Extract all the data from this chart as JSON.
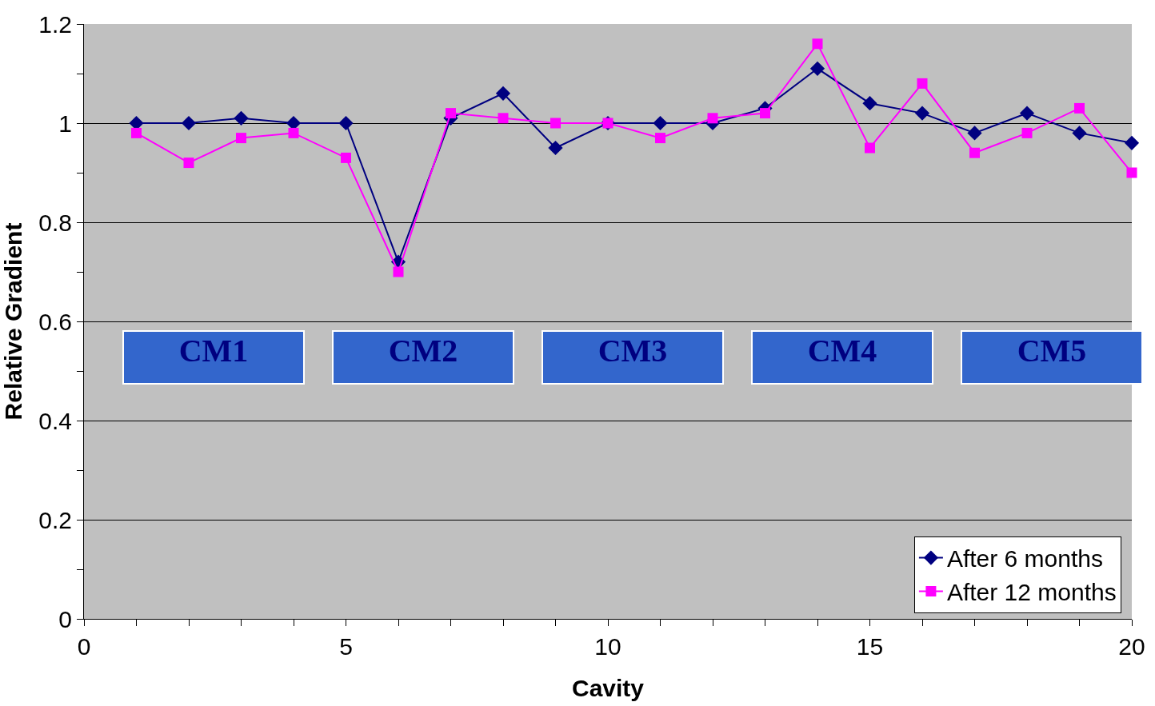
{
  "chart_data": {
    "type": "line",
    "xlabel": "Cavity",
    "ylabel": "Relative Gradient",
    "x": [
      1,
      2,
      3,
      4,
      5,
      6,
      7,
      8,
      9,
      10,
      11,
      12,
      13,
      14,
      15,
      16,
      17,
      18,
      19,
      20
    ],
    "series": [
      {
        "name": "After 6 months",
        "color": "#000080",
        "marker": "diamond",
        "values": [
          1.0,
          1.0,
          1.01,
          1.0,
          1.0,
          0.72,
          1.01,
          1.06,
          0.95,
          1.0,
          1.0,
          1.0,
          1.03,
          1.11,
          1.04,
          1.02,
          0.98,
          1.02,
          0.98,
          0.96
        ]
      },
      {
        "name": "After 12 months",
        "color": "#ff00ff",
        "marker": "square",
        "values": [
          0.98,
          0.92,
          0.97,
          0.98,
          0.93,
          0.7,
          1.02,
          1.01,
          1.0,
          1.0,
          0.97,
          1.01,
          1.02,
          1.16,
          0.95,
          1.08,
          0.94,
          0.98,
          1.03,
          0.9
        ]
      }
    ],
    "xlim": [
      0,
      20
    ],
    "xticks": [
      0,
      {
        "value": 1,
        "label": null
      },
      {
        "value": 2,
        "label": null
      },
      {
        "value": 3,
        "label": null
      },
      {
        "value": 4,
        "label": null
      },
      5,
      {
        "value": 6,
        "label": null
      },
      {
        "value": 7,
        "label": null
      },
      {
        "value": 8,
        "label": null
      },
      {
        "value": 9,
        "label": null
      },
      10,
      {
        "value": 11,
        "label": null
      },
      {
        "value": 12,
        "label": null
      },
      {
        "value": 13,
        "label": null
      },
      {
        "value": 14,
        "label": null
      },
      15,
      {
        "value": 16,
        "label": null
      },
      {
        "value": 17,
        "label": null
      },
      {
        "value": 18,
        "label": null
      },
      {
        "value": 19,
        "label": null
      },
      20
    ],
    "ylim": [
      0,
      1.2
    ],
    "yticks": [
      0,
      {
        "value": 0.1,
        "label": null
      },
      0.2,
      {
        "value": 0.3,
        "label": null
      },
      0.4,
      {
        "value": 0.5,
        "label": null
      },
      0.6,
      {
        "value": 0.7,
        "label": null
      },
      0.8,
      {
        "value": 0.9,
        "label": null
      },
      1,
      {
        "value": 1.1,
        "label": null
      },
      1.2
    ],
    "grid": "y",
    "legend": "bottom right",
    "line_style": "solid",
    "annotations": [
      "CM1",
      "CM2",
      "CM3",
      "CM4",
      "CM5"
    ]
  }
}
